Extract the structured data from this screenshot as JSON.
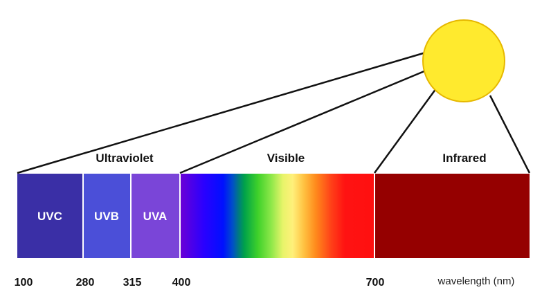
{
  "regions": {
    "ultraviolet": "Ultraviolet",
    "visible": "Visible",
    "infrared": "Infrared"
  },
  "uv_bands": {
    "uvc": {
      "label": "UVC",
      "color": "#3a2fa6"
    },
    "uvb": {
      "label": "UVB",
      "color": "#4b4fd8"
    },
    "uva": {
      "label": "UVA",
      "color": "#7a45d8"
    }
  },
  "infrared_color": "#950000",
  "sun_color": "#ffea2e",
  "ticks": [
    "100",
    "280",
    "315",
    "400",
    "700"
  ],
  "axis_label": "wavelength (nm)"
}
